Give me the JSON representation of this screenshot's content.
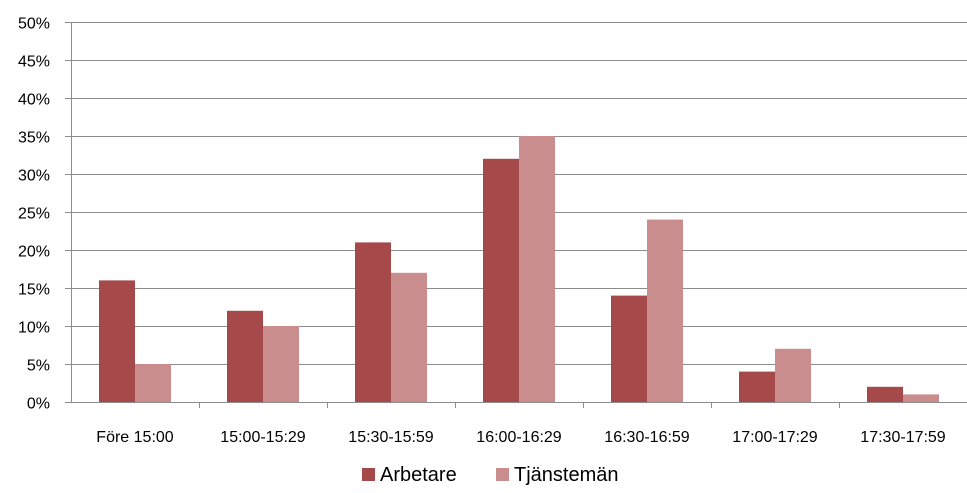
{
  "chart_data": {
    "type": "bar",
    "categories": [
      "Före 15:00",
      "15:00-15:29",
      "15:30-15:59",
      "16:00-16:29",
      "16:30-16:59",
      "17:00-17:29",
      "17:30-17:59"
    ],
    "series": [
      {
        "name": "Arbetare",
        "values": [
          16,
          12,
          21,
          32,
          14,
          4,
          2
        ],
        "color": "#a5494a"
      },
      {
        "name": "Tjänstemän",
        "values": [
          5,
          10,
          17,
          35,
          24,
          7,
          1
        ],
        "color": "#c98d8e"
      }
    ],
    "ylim": [
      0,
      50
    ],
    "y_ticks": [
      "0%",
      "5%",
      "10%",
      "15%",
      "20%",
      "25%",
      "30%",
      "35%",
      "40%",
      "45%",
      "50%"
    ],
    "grid": true,
    "legend_position": "bottom",
    "xlabel": "",
    "ylabel": ""
  }
}
